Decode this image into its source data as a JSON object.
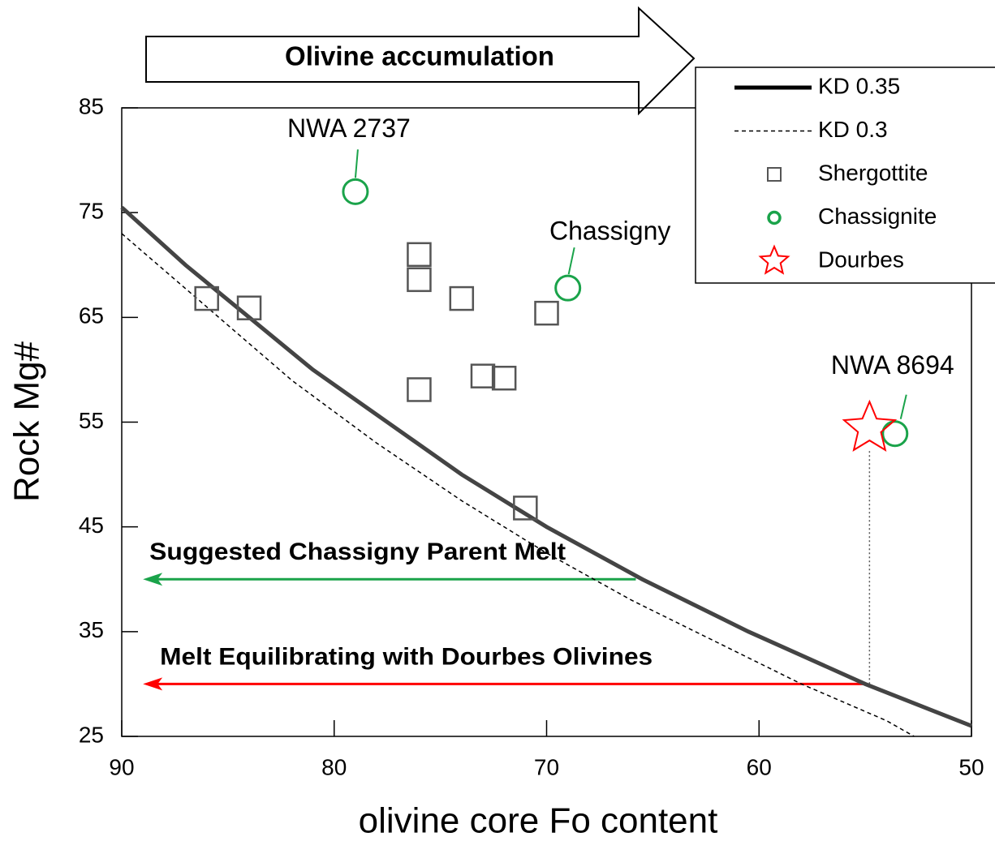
{
  "chart_data": {
    "type": "scatter",
    "banner": "Olivine accumulation",
    "xlabel": "olivine core Fo content",
    "ylabel": "Rock Mg#",
    "xlim": [
      90,
      50
    ],
    "ylim": [
      25,
      85
    ],
    "xticks": [
      90,
      80,
      70,
      60,
      50
    ],
    "yticks": [
      25,
      35,
      45,
      55,
      65,
      75,
      85
    ],
    "series": [
      {
        "name": "KD 0.35",
        "kind": "line",
        "color": "#444444",
        "x": [
          90,
          87,
          84,
          81,
          77.5,
          74,
          70,
          65.5,
          60.5,
          55,
          50
        ],
        "values": [
          75.5,
          70,
          65,
          60,
          55,
          50,
          45,
          40,
          35,
          30,
          26
        ]
      },
      {
        "name": "KD 0.3",
        "kind": "dashed",
        "color": "#000000",
        "x": [
          90,
          86,
          82,
          78,
          74,
          70,
          66,
          62,
          58,
          54,
          52.7
        ],
        "values": [
          73,
          66,
          59,
          53,
          47.5,
          42.5,
          38,
          34,
          30,
          26.5,
          25
        ]
      },
      {
        "name": "Shergottite",
        "kind": "square",
        "color": "#555555",
        "x": [
          86,
          84,
          76,
          76,
          74,
          70,
          73,
          72,
          76,
          71
        ],
        "values": [
          66.8,
          65.9,
          71,
          68.6,
          66.8,
          65.4,
          59.4,
          59.2,
          58.1,
          46.8
        ]
      },
      {
        "name": "Chassignite",
        "kind": "circle",
        "color": "#1aa34a",
        "x": [
          79,
          69,
          53.6
        ],
        "values": [
          77,
          67.8,
          53.9
        ],
        "labels": [
          "NWA 2737",
          "Chassigny",
          "NWA 8694"
        ]
      },
      {
        "name": "Dourbes",
        "kind": "star",
        "color": "#ff0000",
        "x": [
          54.8
        ],
        "values": [
          54.4
        ]
      }
    ],
    "arrows": [
      {
        "text": "Suggested Chassigny Parent Melt",
        "color": "#1aa34a",
        "x": [
          65.8,
          89
        ],
        "y": 40
      },
      {
        "text": "Melt Equilibrating with Dourbes Olivines",
        "color": "#ff0000",
        "x": [
          55,
          89
        ],
        "y": 30
      }
    ]
  }
}
